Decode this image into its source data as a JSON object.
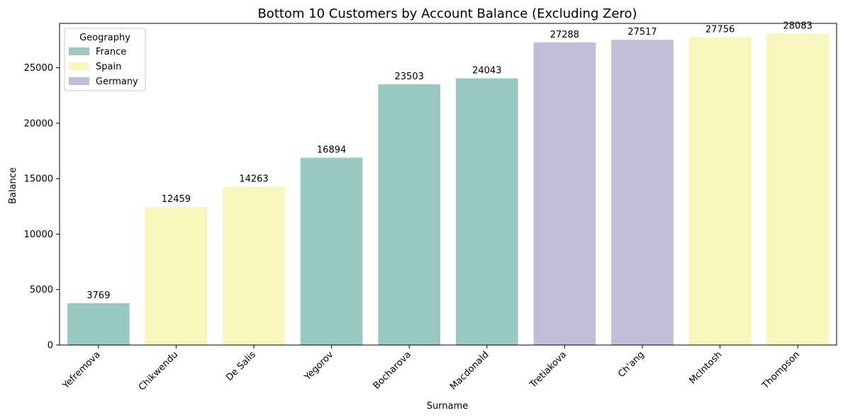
{
  "chart_data": {
    "type": "bar",
    "title": "Bottom 10 Customers by Account Balance (Excluding Zero)",
    "xlabel": "Surname",
    "ylabel": "Balance",
    "ylim": [
      0,
      29000
    ],
    "yticks": [
      0,
      5000,
      10000,
      15000,
      20000,
      25000
    ],
    "categories": [
      "Yefremova",
      "Chikwendu",
      "De Salis",
      "Yegorov",
      "Bocharova",
      "Macdonald",
      "Tretiakova",
      "Ch'ang",
      "McIntosh",
      "Thompson"
    ],
    "values": [
      3769,
      12459,
      14263,
      16894,
      23503,
      24043,
      27288,
      27517,
      27756,
      28083
    ],
    "groups": [
      "France",
      "Spain",
      "Spain",
      "France",
      "France",
      "France",
      "Germany",
      "Germany",
      "Spain",
      "Spain"
    ],
    "data_labels": [
      "3769",
      "12459",
      "14263",
      "16894",
      "23503",
      "24043",
      "27288",
      "27517",
      "27756",
      "28083"
    ],
    "legend": {
      "title": "Geography",
      "position": "top-left",
      "entries": [
        {
          "name": "France",
          "color": "#99c9c1"
        },
        {
          "name": "Spain",
          "color": "#f7f6bc"
        },
        {
          "name": "Germany",
          "color": "#c2bdd6"
        }
      ]
    },
    "grid": false
  }
}
